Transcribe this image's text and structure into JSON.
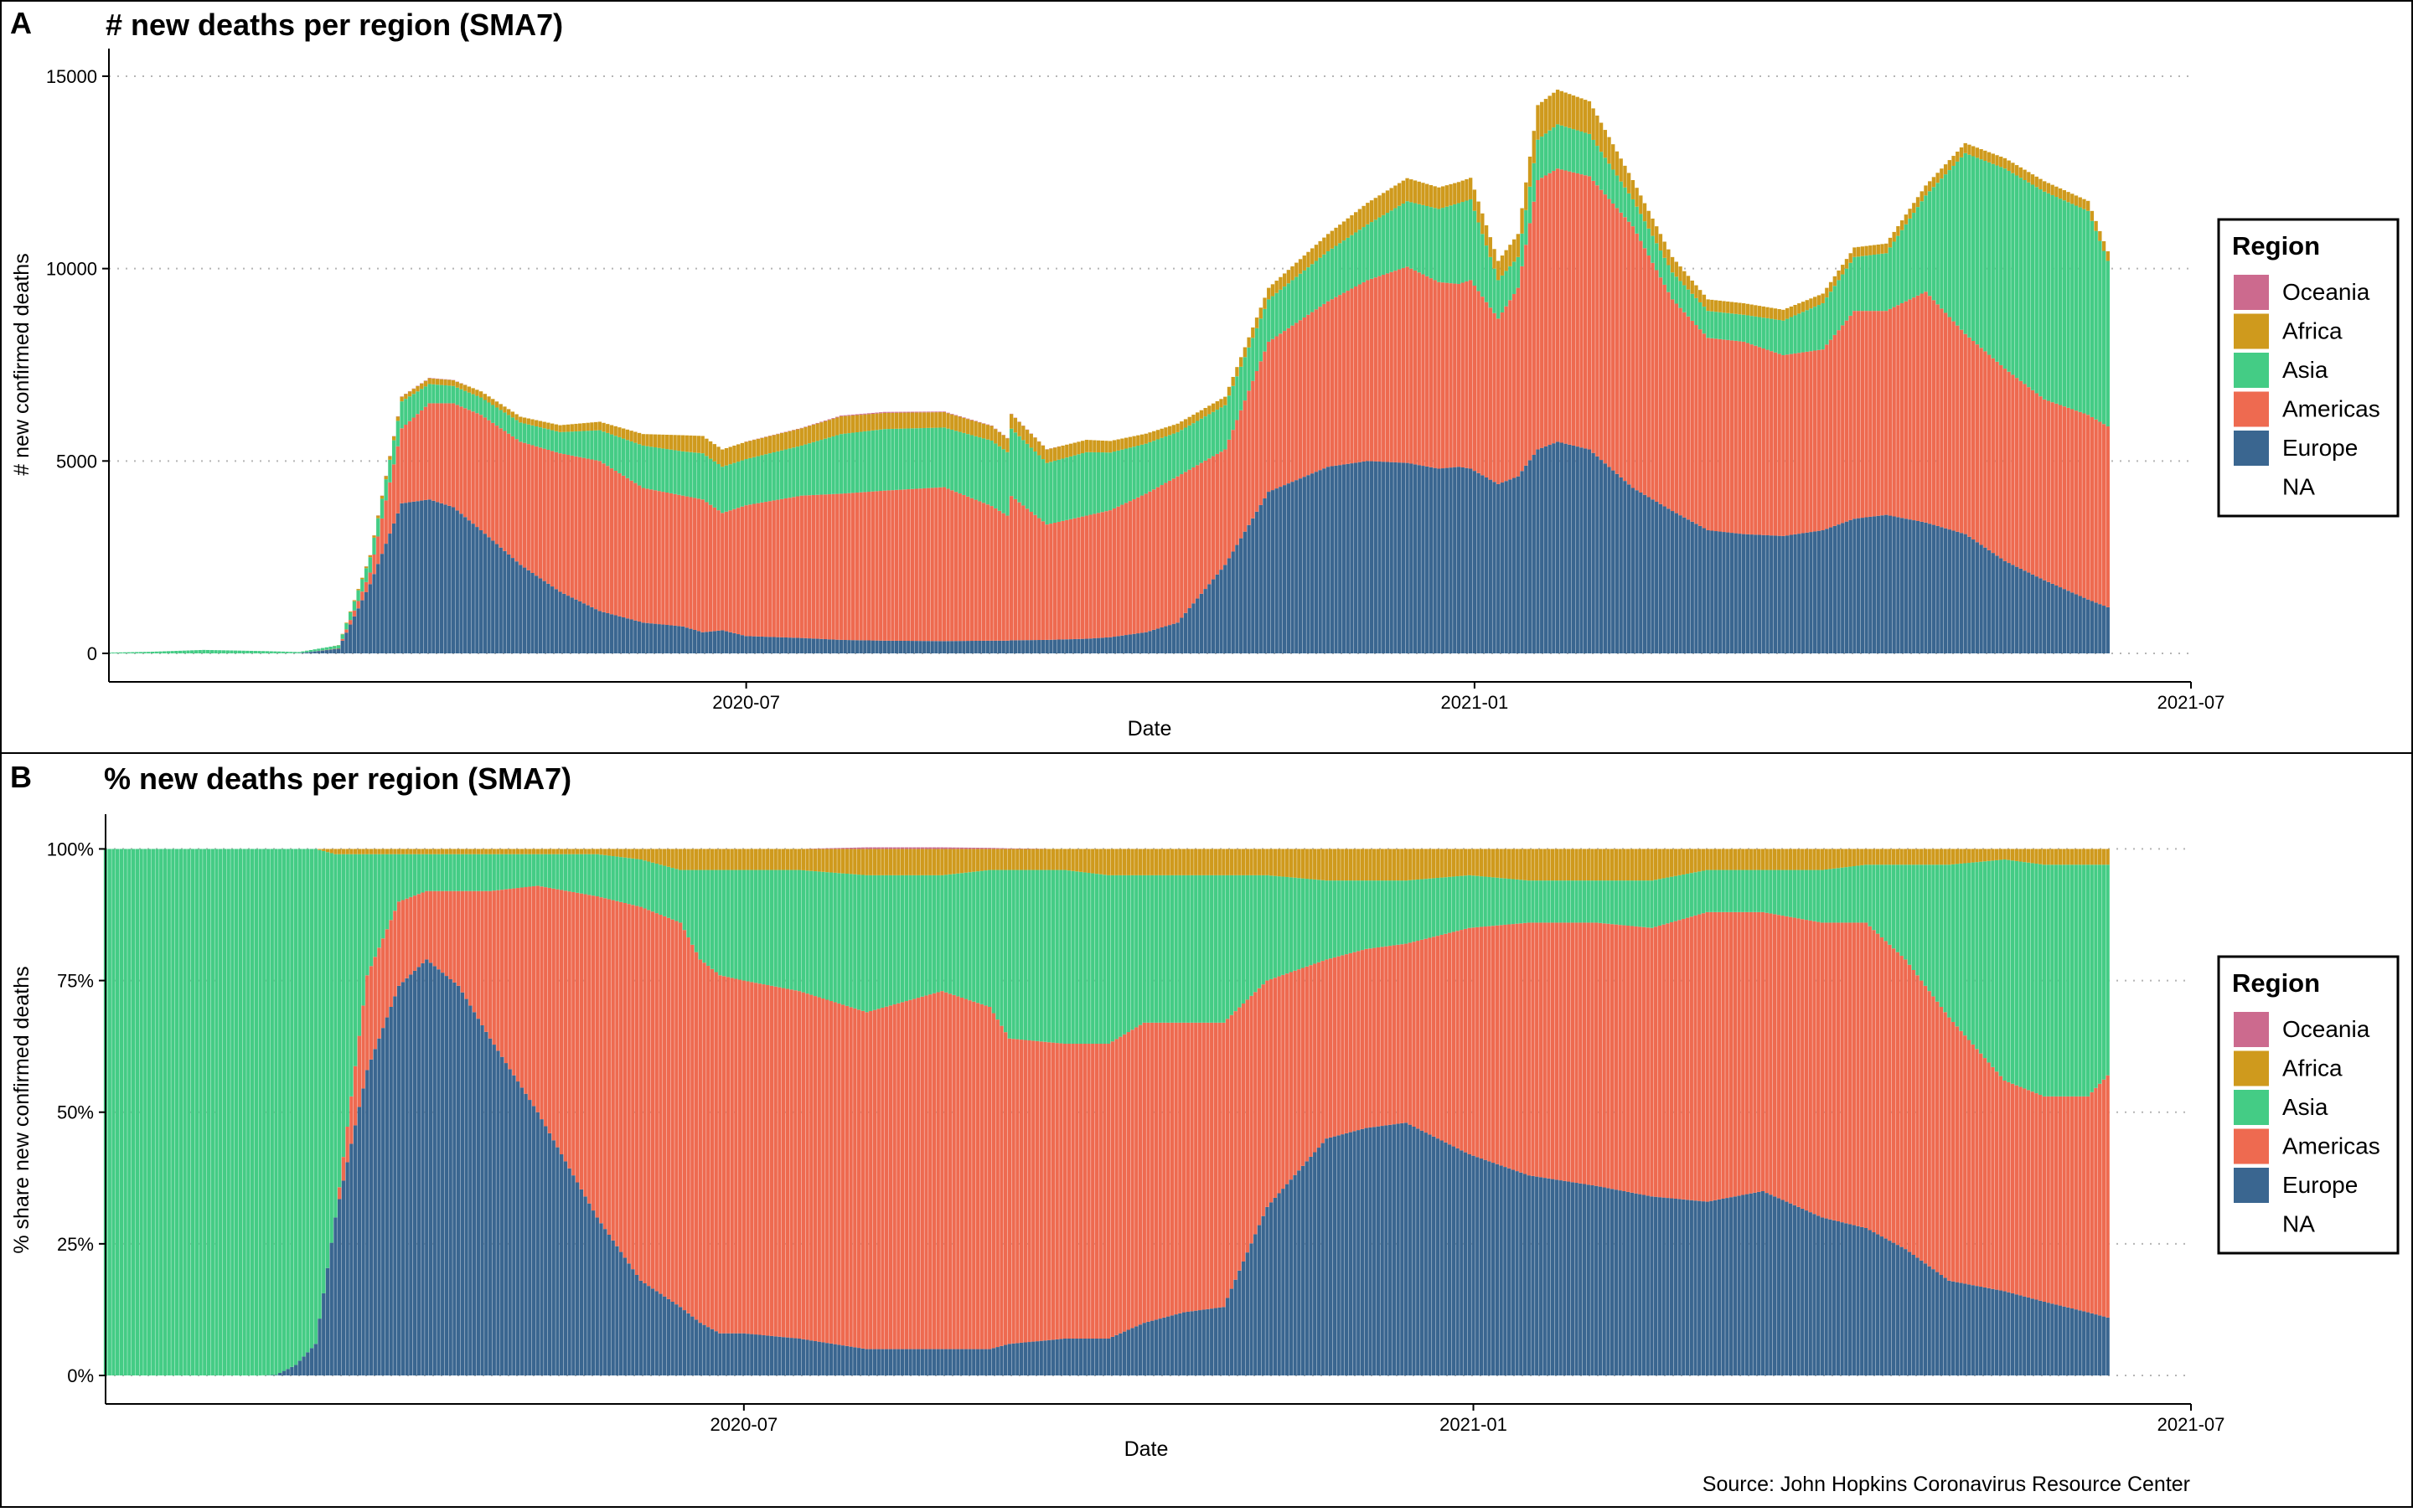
{
  "colors": {
    "Oceania": "#cc6a8e",
    "Africa": "#cf9a1d",
    "Asia": "#44cc85",
    "Americas": "#ee6a50",
    "Europe": "#3a6690",
    "grid": "#b5b5b5",
    "frame": "#000000"
  },
  "source": "Source: John Hopkins Coronavirus Resource Center",
  "legend": {
    "title": "Region",
    "items": [
      "Oceania",
      "Africa",
      "Asia",
      "Americas",
      "Europe",
      "NA"
    ]
  },
  "chart_data": [
    {
      "panel_letter": "A",
      "type": "bar",
      "stacked": true,
      "title": "# new deaths per region (SMA7)",
      "xlabel": "Date",
      "ylabel": "# new confirmed deaths",
      "xlim": [
        "2020-01-22",
        "2021-07-01"
      ],
      "ylim": [
        0,
        15500
      ],
      "x_ticks": [
        "2020-07",
        "2021-01",
        "2021-07"
      ],
      "y_ticks": [
        0,
        5000,
        10000,
        15000
      ],
      "y_tick_labels": [
        "0",
        "5000",
        "10000",
        "15000"
      ],
      "grid": "horizontal dotted",
      "legend_position": "right",
      "dates": [
        "2020-01-22",
        "2020-02-01",
        "2020-02-15",
        "2020-03-01",
        "2020-03-10",
        "2020-03-20",
        "2020-03-28",
        "2020-04-05",
        "2020-04-12",
        "2020-04-18",
        "2020-04-25",
        "2020-05-05",
        "2020-05-15",
        "2020-05-25",
        "2020-06-05",
        "2020-06-15",
        "2020-06-20",
        "2020-06-25",
        "2020-07-01",
        "2020-07-15",
        "2020-07-25",
        "2020-08-05",
        "2020-08-20",
        "2020-09-01",
        "2020-09-05",
        "2020-09-06",
        "2020-09-15",
        "2020-09-25",
        "2020-10-01",
        "2020-10-10",
        "2020-10-18",
        "2020-10-30",
        "2020-11-10",
        "2020-11-25",
        "2020-12-05",
        "2020-12-15",
        "2020-12-23",
        "2020-12-28",
        "2020-12-31",
        "2021-01-07",
        "2021-01-12",
        "2021-01-17",
        "2021-01-22",
        "2021-01-30",
        "2021-02-10",
        "2021-02-20",
        "2021-03-01",
        "2021-03-10",
        "2021-03-20",
        "2021-03-30",
        "2021-04-07",
        "2021-04-15",
        "2021-04-25",
        "2021-05-05",
        "2021-05-15",
        "2021-05-25",
        "2021-06-05",
        "2021-06-10"
      ],
      "series": [
        {
          "name": "Europe",
          "values": [
            0,
            0,
            0,
            0,
            5,
            120,
            1800,
            3900,
            4000,
            3800,
            3200,
            2300,
            1600,
            1100,
            800,
            700,
            550,
            600,
            450,
            400,
            350,
            330,
            320,
            330,
            330,
            340,
            350,
            380,
            420,
            550,
            800,
            2300,
            4200,
            4850,
            5000,
            4950,
            4800,
            4850,
            4800,
            4400,
            4600,
            5300,
            5500,
            5300,
            4300,
            3700,
            3200,
            3100,
            3050,
            3200,
            3500,
            3600,
            3400,
            3100,
            2400,
            1900,
            1400,
            1200
          ]
        },
        {
          "name": "Americas",
          "values": [
            0,
            0,
            0,
            0,
            0,
            10,
            300,
            1950,
            2500,
            2700,
            3000,
            3200,
            3600,
            3900,
            3500,
            3400,
            3450,
            3050,
            3400,
            3700,
            3800,
            3900,
            4000,
            3500,
            3250,
            3750,
            3000,
            3200,
            3300,
            3600,
            3800,
            3000,
            3900,
            4300,
            4700,
            5100,
            4850,
            4750,
            4900,
            4300,
            4900,
            7000,
            7100,
            7100,
            6800,
            5500,
            5000,
            5000,
            4700,
            4700,
            5400,
            5300,
            6000,
            5200,
            5000,
            4700,
            4800,
            4700
          ]
        },
        {
          "name": "Asia",
          "values": [
            20,
            40,
            90,
            60,
            30,
            80,
            400,
            700,
            500,
            450,
            450,
            500,
            550,
            800,
            1100,
            1150,
            1200,
            1200,
            1200,
            1300,
            1550,
            1600,
            1550,
            1700,
            1650,
            1750,
            1600,
            1650,
            1500,
            1300,
            1150,
            1150,
            1100,
            1300,
            1450,
            1700,
            1900,
            2100,
            2100,
            1000,
            800,
            1050,
            1150,
            1100,
            700,
            700,
            700,
            700,
            900,
            1200,
            1400,
            1500,
            2500,
            4700,
            5200,
            5400,
            5300,
            4300
          ]
        },
        {
          "name": "Africa",
          "values": [
            0,
            0,
            0,
            0,
            0,
            5,
            50,
            120,
            150,
            150,
            160,
            150,
            180,
            220,
            300,
            420,
            450,
            450,
            450,
            450,
            460,
            420,
            400,
            380,
            360,
            380,
            350,
            320,
            300,
            260,
            220,
            220,
            300,
            450,
            560,
            600,
            560,
            550,
            560,
            500,
            600,
            900,
            900,
            850,
            500,
            400,
            300,
            300,
            280,
            250,
            250,
            250,
            260,
            260,
            270,
            270,
            260,
            250
          ]
        },
        {
          "name": "Oceania",
          "values": [
            0,
            0,
            0,
            0,
            0,
            1,
            5,
            8,
            10,
            6,
            3,
            1,
            1,
            1,
            1,
            1,
            1,
            1,
            5,
            10,
            20,
            25,
            15,
            10,
            8,
            8,
            5,
            3,
            2,
            1,
            1,
            1,
            1,
            1,
            1,
            1,
            1,
            1,
            1,
            1,
            1,
            1,
            1,
            1,
            1,
            1,
            1,
            1,
            1,
            1,
            1,
            1,
            1,
            2,
            3,
            3,
            3,
            3
          ]
        }
      ]
    },
    {
      "panel_letter": "B",
      "type": "bar",
      "stacked": true,
      "percent": true,
      "title": "% new deaths per region (SMA7)",
      "xlabel": "Date",
      "ylabel": "% share new confirmed deaths",
      "xlim": [
        "2020-01-22",
        "2021-07-01"
      ],
      "ylim": [
        0,
        1.05
      ],
      "x_ticks": [
        "2020-07",
        "2021-01",
        "2021-07"
      ],
      "y_ticks": [
        0,
        0.25,
        0.5,
        0.75,
        1
      ],
      "y_tick_labels": [
        "0%",
        "25%",
        "50%",
        "75%",
        "100%"
      ],
      "grid": "horizontal dotted",
      "legend_position": "right",
      "dates": [
        "2020-01-22",
        "2020-02-10",
        "2020-03-01",
        "2020-03-05",
        "2020-03-10",
        "2020-03-15",
        "2020-03-20",
        "2020-03-28",
        "2020-04-05",
        "2020-04-12",
        "2020-04-20",
        "2020-04-28",
        "2020-05-10",
        "2020-05-25",
        "2020-06-05",
        "2020-06-15",
        "2020-06-20",
        "2020-06-25",
        "2020-07-01",
        "2020-07-15",
        "2020-08-01",
        "2020-08-20",
        "2020-09-01",
        "2020-09-06",
        "2020-09-20",
        "2020-10-01",
        "2020-10-10",
        "2020-10-20",
        "2020-10-30",
        "2020-11-10",
        "2020-11-25",
        "2020-12-05",
        "2020-12-15",
        "2020-12-31",
        "2021-01-15",
        "2021-02-01",
        "2021-02-15",
        "2021-03-01",
        "2021-03-15",
        "2021-03-30",
        "2021-04-10",
        "2021-04-20",
        "2021-05-01",
        "2021-05-15",
        "2021-05-25",
        "2021-06-05",
        "2021-06-10"
      ],
      "series": [
        {
          "name": "Europe",
          "values": [
            0,
            0,
            0,
            0.001,
            0.02,
            0.06,
            0.3,
            0.58,
            0.74,
            0.79,
            0.74,
            0.64,
            0.5,
            0.3,
            0.18,
            0.13,
            0.1,
            0.08,
            0.08,
            0.07,
            0.05,
            0.05,
            0.05,
            0.06,
            0.07,
            0.07,
            0.1,
            0.12,
            0.13,
            0.32,
            0.45,
            0.47,
            0.48,
            0.42,
            0.38,
            0.36,
            0.34,
            0.33,
            0.35,
            0.3,
            0.28,
            0.24,
            0.18,
            0.16,
            0.14,
            0.12,
            0.11
          ]
        },
        {
          "name": "Americas",
          "values": [
            0,
            0,
            0,
            0,
            0,
            0,
            0,
            0.18,
            0.16,
            0.13,
            0.18,
            0.28,
            0.43,
            0.61,
            0.71,
            0.73,
            0.69,
            0.68,
            0.67,
            0.66,
            0.64,
            0.68,
            0.65,
            0.58,
            0.56,
            0.56,
            0.57,
            0.55,
            0.54,
            0.43,
            0.34,
            0.34,
            0.34,
            0.43,
            0.48,
            0.5,
            0.51,
            0.55,
            0.53,
            0.56,
            0.58,
            0.55,
            0.5,
            0.4,
            0.39,
            0.41,
            0.46
          ]
        },
        {
          "name": "Asia",
          "values": [
            1,
            1,
            1,
            0.999,
            0.98,
            0.94,
            0.69,
            0.23,
            0.09,
            0.07,
            0.07,
            0.07,
            0.06,
            0.08,
            0.09,
            0.1,
            0.17,
            0.2,
            0.21,
            0.23,
            0.26,
            0.22,
            0.26,
            0.32,
            0.33,
            0.32,
            0.28,
            0.28,
            0.28,
            0.2,
            0.15,
            0.13,
            0.12,
            0.1,
            0.08,
            0.08,
            0.09,
            0.08,
            0.08,
            0.1,
            0.11,
            0.18,
            0.29,
            0.42,
            0.44,
            0.44,
            0.4
          ]
        },
        {
          "name": "Africa",
          "values": [
            0,
            0,
            0,
            0,
            0,
            0,
            0.01,
            0.01,
            0.01,
            0.01,
            0.01,
            0.01,
            0.01,
            0.01,
            0.02,
            0.04,
            0.04,
            0.04,
            0.04,
            0.04,
            0.05,
            0.05,
            0.04,
            0.04,
            0.04,
            0.05,
            0.05,
            0.05,
            0.05,
            0.05,
            0.06,
            0.06,
            0.06,
            0.05,
            0.06,
            0.06,
            0.06,
            0.04,
            0.04,
            0.04,
            0.03,
            0.03,
            0.03,
            0.02,
            0.03,
            0.03,
            0.03
          ]
        },
        {
          "name": "Oceania",
          "values": [
            0,
            0,
            0,
            0,
            0,
            0,
            0,
            0,
            0,
            0,
            0,
            0,
            0,
            0,
            0,
            0,
            0,
            0,
            0,
            0,
            0.003,
            0.003,
            0.002,
            0.001,
            0,
            0,
            0,
            0,
            0,
            0,
            0,
            0,
            0,
            0,
            0,
            0,
            0,
            0,
            0,
            0,
            0,
            0,
            0,
            0,
            0,
            0,
            0
          ]
        }
      ]
    }
  ]
}
